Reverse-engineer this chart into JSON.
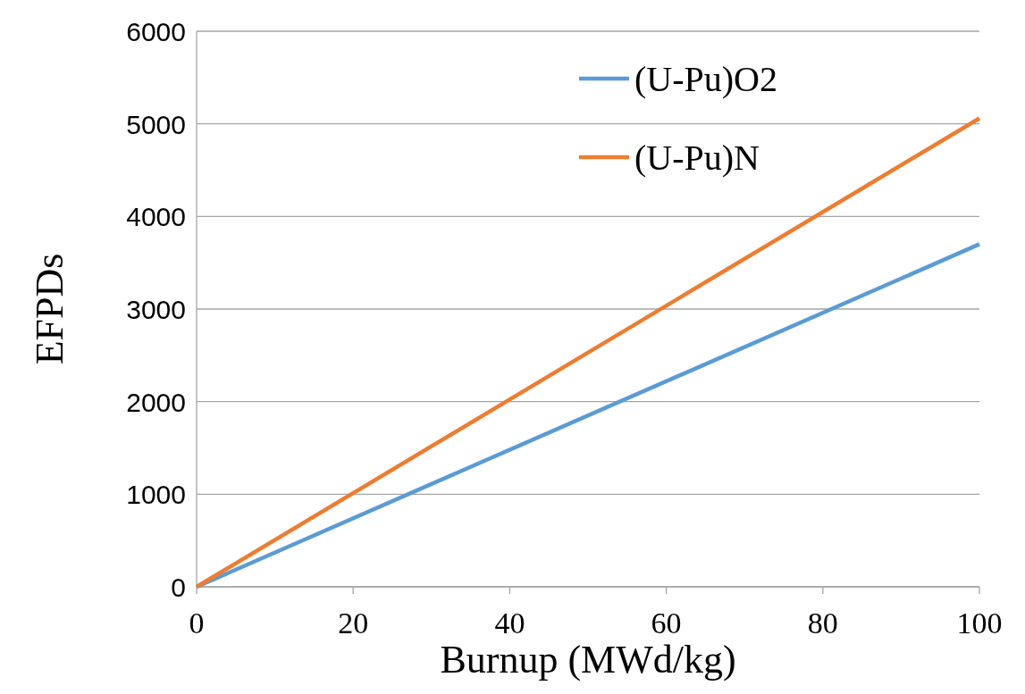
{
  "chart_data": {
    "type": "line",
    "xlabel": "Burnup (MWd/kg)",
    "ylabel": "EFPDs",
    "x": [
      0,
      100
    ],
    "series": [
      {
        "name": "(U-Pu)O2",
        "color": "#5b9bd5",
        "values": [
          0,
          3700
        ]
      },
      {
        "name": "(U-Pu)N",
        "color": "#ed7d31",
        "values": [
          0,
          5060
        ]
      }
    ],
    "xlim": [
      0,
      100
    ],
    "xticks": [
      0,
      20,
      40,
      60,
      80,
      100
    ],
    "ylim": [
      0,
      6000
    ],
    "yticks": [
      0,
      1000,
      2000,
      3000,
      4000,
      5000,
      6000
    ],
    "grid": "y",
    "legend": "top right",
    "marker": "none",
    "line_style": "solid"
  }
}
